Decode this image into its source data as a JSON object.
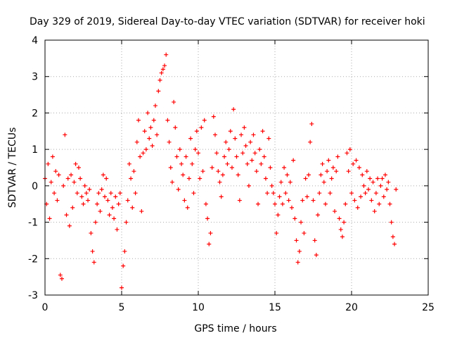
{
  "chart_data": {
    "type": "scatter",
    "title": "Day 329 of 2019, Sidereal Day-to-day VTEC variation (SDTVAR) for receiver hoki",
    "xlabel": "GPS time / hours",
    "ylabel": "SDTVAR / TECUs",
    "xlim": [
      0,
      25
    ],
    "ylim": [
      -3,
      4
    ],
    "xticks": [
      "0",
      "5",
      "10",
      "15",
      "20",
      "25"
    ],
    "yticks": [
      "-3",
      "-2",
      "-1",
      "0",
      "1",
      "2",
      "3",
      "4"
    ],
    "grid": true,
    "marker": "+",
    "series": [
      {
        "name": "SDTVAR",
        "color": "#ff0000",
        "points": [
          [
            0.0,
            0.2
          ],
          [
            0.1,
            -0.5
          ],
          [
            0.2,
            0.6
          ],
          [
            0.3,
            -0.9
          ],
          [
            0.4,
            0.1
          ],
          [
            0.5,
            0.8
          ],
          [
            0.6,
            -0.2
          ],
          [
            0.7,
            0.4
          ],
          [
            0.8,
            -0.4
          ],
          [
            0.9,
            0.3
          ],
          [
            1.0,
            -2.45
          ],
          [
            1.1,
            -2.55
          ],
          [
            1.2,
            0.0
          ],
          [
            1.3,
            1.4
          ],
          [
            1.4,
            -0.8
          ],
          [
            1.5,
            0.2
          ],
          [
            1.6,
            -1.1
          ],
          [
            1.7,
            0.3
          ],
          [
            1.8,
            -0.6
          ],
          [
            1.9,
            0.1
          ],
          [
            2.0,
            0.6
          ],
          [
            2.1,
            -0.2
          ],
          [
            2.2,
            0.5
          ],
          [
            2.3,
            0.2
          ],
          [
            2.4,
            -0.3
          ],
          [
            2.5,
            -0.5
          ],
          [
            2.6,
            0.0
          ],
          [
            2.7,
            -0.2
          ],
          [
            2.8,
            -0.4
          ],
          [
            2.9,
            -0.1
          ],
          [
            3.0,
            -1.3
          ],
          [
            3.1,
            -1.8
          ],
          [
            3.2,
            -2.1
          ],
          [
            3.3,
            -1.0
          ],
          [
            3.4,
            -0.5
          ],
          [
            3.5,
            -0.2
          ],
          [
            3.6,
            -0.7
          ],
          [
            3.7,
            -0.1
          ],
          [
            3.8,
            0.3
          ],
          [
            3.9,
            -0.3
          ],
          [
            4.0,
            0.2
          ],
          [
            4.1,
            -0.4
          ],
          [
            4.2,
            -0.8
          ],
          [
            4.3,
            -0.2
          ],
          [
            4.4,
            -0.6
          ],
          [
            4.5,
            -0.9
          ],
          [
            4.6,
            -0.3
          ],
          [
            4.7,
            -1.2
          ],
          [
            4.8,
            -0.5
          ],
          [
            4.9,
            -0.2
          ],
          [
            5.0,
            -2.8
          ],
          [
            5.1,
            -2.2
          ],
          [
            5.2,
            -1.8
          ],
          [
            5.3,
            -1.0
          ],
          [
            5.4,
            -0.4
          ],
          [
            5.5,
            0.6
          ],
          [
            5.6,
            0.2
          ],
          [
            5.7,
            -0.6
          ],
          [
            5.8,
            0.4
          ],
          [
            5.9,
            -0.2
          ],
          [
            6.0,
            1.2
          ],
          [
            6.1,
            1.8
          ],
          [
            6.2,
            0.8
          ],
          [
            6.3,
            -0.7
          ],
          [
            6.4,
            0.9
          ],
          [
            6.5,
            1.5
          ],
          [
            6.6,
            1.0
          ],
          [
            6.7,
            2.0
          ],
          [
            6.8,
            1.3
          ],
          [
            6.9,
            1.6
          ],
          [
            7.0,
            1.1
          ],
          [
            7.1,
            1.8
          ],
          [
            7.2,
            2.2
          ],
          [
            7.3,
            1.4
          ],
          [
            7.4,
            2.6
          ],
          [
            7.5,
            2.9
          ],
          [
            7.6,
            3.1
          ],
          [
            7.7,
            3.2
          ],
          [
            7.8,
            3.3
          ],
          [
            7.9,
            3.6
          ],
          [
            8.0,
            1.8
          ],
          [
            8.1,
            1.2
          ],
          [
            8.2,
            0.5
          ],
          [
            8.3,
            0.1
          ],
          [
            8.4,
            2.3
          ],
          [
            8.5,
            1.6
          ],
          [
            8.6,
            0.8
          ],
          [
            8.7,
            -0.1
          ],
          [
            8.8,
            1.0
          ],
          [
            8.9,
            0.6
          ],
          [
            9.0,
            0.3
          ],
          [
            9.1,
            -0.4
          ],
          [
            9.2,
            0.8
          ],
          [
            9.3,
            -0.6
          ],
          [
            9.4,
            0.2
          ],
          [
            9.5,
            1.3
          ],
          [
            9.6,
            0.6
          ],
          [
            9.7,
            -0.2
          ],
          [
            9.8,
            1.0
          ],
          [
            9.9,
            1.5
          ],
          [
            10.0,
            0.9
          ],
          [
            10.1,
            0.2
          ],
          [
            10.2,
            1.6
          ],
          [
            10.3,
            0.4
          ],
          [
            10.4,
            1.8
          ],
          [
            10.5,
            -0.5
          ],
          [
            10.6,
            -0.9
          ],
          [
            10.7,
            -1.6
          ],
          [
            10.8,
            -1.3
          ],
          [
            10.9,
            0.5
          ],
          [
            11.0,
            1.9
          ],
          [
            11.1,
            1.4
          ],
          [
            11.2,
            0.9
          ],
          [
            11.3,
            0.4
          ],
          [
            11.4,
            0.1
          ],
          [
            11.5,
            -0.3
          ],
          [
            11.6,
            0.3
          ],
          [
            11.7,
            0.8
          ],
          [
            11.8,
            1.2
          ],
          [
            11.9,
            0.6
          ],
          [
            12.0,
            1.0
          ],
          [
            12.1,
            1.5
          ],
          [
            12.2,
            0.5
          ],
          [
            12.3,
            2.1
          ],
          [
            12.4,
            1.3
          ],
          [
            12.5,
            0.8
          ],
          [
            12.6,
            0.3
          ],
          [
            12.7,
            -0.4
          ],
          [
            12.8,
            1.4
          ],
          [
            12.9,
            0.9
          ],
          [
            13.0,
            1.6
          ],
          [
            13.1,
            1.1
          ],
          [
            13.2,
            0.6
          ],
          [
            13.3,
            0.0
          ],
          [
            13.4,
            1.2
          ],
          [
            13.5,
            0.7
          ],
          [
            13.6,
            1.4
          ],
          [
            13.7,
            0.9
          ],
          [
            13.8,
            0.4
          ],
          [
            13.9,
            -0.5
          ],
          [
            14.0,
            1.0
          ],
          [
            14.1,
            0.6
          ],
          [
            14.2,
            1.5
          ],
          [
            14.3,
            0.8
          ],
          [
            14.4,
            0.2
          ],
          [
            14.5,
            -0.2
          ],
          [
            14.6,
            1.3
          ],
          [
            14.7,
            0.5
          ],
          [
            14.8,
            0.0
          ],
          [
            14.9,
            -0.2
          ],
          [
            15.0,
            -0.5
          ],
          [
            15.1,
            -1.3
          ],
          [
            15.2,
            -0.8
          ],
          [
            15.3,
            -0.3
          ],
          [
            15.4,
            0.1
          ],
          [
            15.5,
            -0.5
          ],
          [
            15.6,
            0.5
          ],
          [
            15.7,
            -0.2
          ],
          [
            15.8,
            0.3
          ],
          [
            15.9,
            -0.4
          ],
          [
            16.0,
            0.1
          ],
          [
            16.1,
            -0.6
          ],
          [
            16.2,
            0.7
          ],
          [
            16.3,
            -0.9
          ],
          [
            16.4,
            -1.5
          ],
          [
            16.5,
            -2.1
          ],
          [
            16.6,
            -1.8
          ],
          [
            16.7,
            -1.0
          ],
          [
            16.8,
            -0.4
          ],
          [
            16.9,
            -1.3
          ],
          [
            17.0,
            0.2
          ],
          [
            17.1,
            -0.3
          ],
          [
            17.2,
            0.3
          ],
          [
            17.3,
            1.2
          ],
          [
            17.4,
            1.7
          ],
          [
            17.5,
            -0.4
          ],
          [
            17.6,
            -1.5
          ],
          [
            17.7,
            -1.9
          ],
          [
            17.8,
            -0.8
          ],
          [
            17.9,
            -0.2
          ],
          [
            18.0,
            0.3
          ],
          [
            18.1,
            0.6
          ],
          [
            18.2,
            0.1
          ],
          [
            18.3,
            -0.5
          ],
          [
            18.4,
            0.4
          ],
          [
            18.5,
            0.7
          ],
          [
            18.6,
            -0.2
          ],
          [
            18.7,
            0.2
          ],
          [
            18.8,
            0.5
          ],
          [
            18.9,
            -0.7
          ],
          [
            19.0,
            0.4
          ],
          [
            19.1,
            0.8
          ],
          [
            19.2,
            -0.9
          ],
          [
            19.3,
            -1.2
          ],
          [
            19.4,
            -1.4
          ],
          [
            19.5,
            -1.0
          ],
          [
            19.6,
            -0.5
          ],
          [
            19.7,
            0.9
          ],
          [
            19.8,
            0.4
          ],
          [
            19.9,
            1.0
          ],
          [
            20.0,
            -0.2
          ],
          [
            20.1,
            0.6
          ],
          [
            20.2,
            -0.4
          ],
          [
            20.3,
            0.7
          ],
          [
            20.4,
            -0.6
          ],
          [
            20.5,
            0.5
          ],
          [
            20.6,
            -0.3
          ],
          [
            20.7,
            0.3
          ],
          [
            20.8,
            0.0
          ],
          [
            20.9,
            -0.2
          ],
          [
            21.0,
            0.4
          ],
          [
            21.1,
            -0.1
          ],
          [
            21.2,
            0.2
          ],
          [
            21.3,
            -0.4
          ],
          [
            21.4,
            0.1
          ],
          [
            21.5,
            -0.7
          ],
          [
            21.6,
            -0.2
          ],
          [
            21.7,
            0.2
          ],
          [
            21.8,
            -0.5
          ],
          [
            21.9,
            0.0
          ],
          [
            22.0,
            0.2
          ],
          [
            22.1,
            -0.3
          ],
          [
            22.2,
            0.3
          ],
          [
            22.3,
            -0.1
          ],
          [
            22.4,
            0.1
          ],
          [
            22.5,
            -0.5
          ],
          [
            22.6,
            -1.0
          ],
          [
            22.7,
            -1.4
          ],
          [
            22.8,
            -1.6
          ],
          [
            22.9,
            -0.1
          ]
        ]
      }
    ]
  }
}
